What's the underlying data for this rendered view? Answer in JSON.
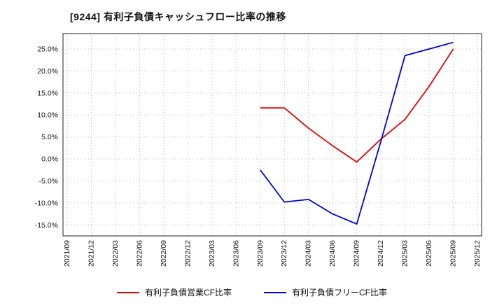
{
  "page": {
    "background": "#ffffff"
  },
  "chart_data": {
    "type": "line",
    "title": "[9244]  有利子負債キャッシュフロー比率の推移",
    "xlabel": "",
    "ylabel": "",
    "grid": true,
    "legend_position": "bottom",
    "ylim": [
      -17.5,
      28.5
    ],
    "yticks": [
      25,
      20,
      15,
      10,
      5,
      0,
      -5,
      -10,
      -15
    ],
    "ytick_labels": [
      "25.0%",
      "20.0%",
      "15.0%",
      "10.0%",
      "5.0%",
      "0.0%",
      "-5.0%",
      "-10.0%",
      "-15.0%"
    ],
    "categories": [
      "2021/09",
      "2021/12",
      "2022/03",
      "2022/06",
      "2022/09",
      "2022/12",
      "2023/03",
      "2023/06",
      "2023/09",
      "2023/12",
      "2024/03",
      "2024/06",
      "2024/09",
      "2024/12",
      "2025/03",
      "2025/06",
      "2025/09",
      "2025/12"
    ],
    "series": [
      {
        "name": "有利子負債営業CF比率",
        "color": "#e60000",
        "values": [
          null,
          null,
          null,
          null,
          null,
          null,
          null,
          null,
          11.6,
          11.6,
          7.0,
          3.0,
          -0.7,
          4.5,
          9.0,
          16.5,
          25.0,
          null
        ]
      },
      {
        "name": "有利子負債フリーCF比率",
        "color": "#0000dd",
        "values": [
          null,
          null,
          null,
          null,
          null,
          null,
          null,
          null,
          -2.5,
          -9.8,
          -9.2,
          -12.5,
          -14.8,
          4.0,
          23.5,
          25.0,
          26.5,
          null
        ]
      }
    ],
    "grid_color": "#bbbbbb",
    "axis_color": "#222222"
  }
}
